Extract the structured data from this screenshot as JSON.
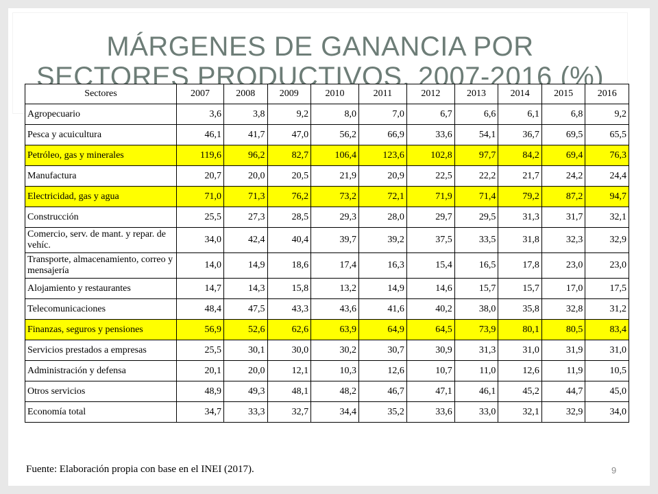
{
  "slide": {
    "title_line1": "MÁRGENES DE GANANCIA POR",
    "title_line2": "SECTORES PRODUCTIVOS, 2007-2016 (%)",
    "source": "Fuente: Elaboración propia con base en el INEI (2017).",
    "page_number": "9",
    "highlight_color": "#ffff00",
    "title_color": "#6d7d77"
  },
  "table": {
    "header": [
      "Sectores",
      "2007",
      "2008",
      "2009",
      "2010",
      "2011",
      "2012",
      "2013",
      "2014",
      "2015",
      "2016"
    ],
    "rows": [
      {
        "sector": "Agropecuario",
        "values": [
          "3,6",
          "3,8",
          "9,2",
          "8,0",
          "7,0",
          "6,7",
          "6,6",
          "6,1",
          "6,8",
          "9,2"
        ],
        "highlight": false
      },
      {
        "sector": "Pesca y acuicultura",
        "values": [
          "46,1",
          "41,7",
          "47,0",
          "56,2",
          "66,9",
          "33,6",
          "54,1",
          "36,7",
          "69,5",
          "65,5"
        ],
        "highlight": false
      },
      {
        "sector": "Petróleo, gas y minerales",
        "values": [
          "119,6",
          "96,2",
          "82,7",
          "106,4",
          "123,6",
          "102,8",
          "97,7",
          "84,2",
          "69,4",
          "76,3"
        ],
        "highlight": true
      },
      {
        "sector": "Manufactura",
        "values": [
          "20,7",
          "20,0",
          "20,5",
          "21,9",
          "20,9",
          "22,5",
          "22,2",
          "21,7",
          "24,2",
          "24,4"
        ],
        "highlight": false
      },
      {
        "sector": "Electricidad, gas y agua",
        "values": [
          "71,0",
          "71,3",
          "76,2",
          "73,2",
          "72,1",
          "71,9",
          "71,4",
          "79,2",
          "87,2",
          "94,7"
        ],
        "highlight": true
      },
      {
        "sector": "Construcción",
        "values": [
          "25,5",
          "27,3",
          "28,5",
          "29,3",
          "28,0",
          "29,7",
          "29,5",
          "31,3",
          "31,7",
          "32,1"
        ],
        "highlight": false
      },
      {
        "sector": "Comercio, serv. de mant. y repar. de vehíc.",
        "values": [
          "34,0",
          "42,4",
          "40,4",
          "39,7",
          "39,2",
          "37,5",
          "33,5",
          "31,8",
          "32,3",
          "32,9"
        ],
        "highlight": false,
        "tall": true
      },
      {
        "sector": "Transporte, almacenamiento, correo y mensajería",
        "values": [
          "14,0",
          "14,9",
          "18,6",
          "17,4",
          "16,3",
          "15,4",
          "16,5",
          "17,8",
          "23,0",
          "23,0"
        ],
        "highlight": false,
        "tall": true
      },
      {
        "sector": "Alojamiento y restaurantes",
        "values": [
          "14,7",
          "14,3",
          "15,8",
          "13,2",
          "14,9",
          "14,6",
          "15,7",
          "15,7",
          "17,0",
          "17,5"
        ],
        "highlight": false
      },
      {
        "sector": "Telecomunicaciones",
        "values": [
          "48,4",
          "47,5",
          "43,3",
          "43,6",
          "41,6",
          "40,2",
          "38,0",
          "35,8",
          "32,8",
          "31,2"
        ],
        "highlight": false
      },
      {
        "sector": "Finanzas, seguros y pensiones",
        "values": [
          "56,9",
          "52,6",
          "62,6",
          "63,9",
          "64,9",
          "64,5",
          "73,9",
          "80,1",
          "80,5",
          "83,4"
        ],
        "highlight": true
      },
      {
        "sector": "Servicios prestados a empresas",
        "values": [
          "25,5",
          "30,1",
          "30,0",
          "30,2",
          "30,7",
          "30,9",
          "31,3",
          "31,0",
          "31,9",
          "31,0"
        ],
        "highlight": false
      },
      {
        "sector": "Administración y defensa",
        "values": [
          "20,1",
          "20,0",
          "12,1",
          "10,3",
          "12,6",
          "10,7",
          "11,0",
          "12,6",
          "11,9",
          "10,5"
        ],
        "highlight": false
      },
      {
        "sector": "Otros servicios",
        "values": [
          "48,9",
          "49,3",
          "48,1",
          "48,2",
          "46,7",
          "47,1",
          "46,1",
          "45,2",
          "44,7",
          "45,0"
        ],
        "highlight": false
      },
      {
        "sector": "Economía total",
        "values": [
          "34,7",
          "33,3",
          "32,7",
          "34,4",
          "35,2",
          "33,6",
          "33,0",
          "32,1",
          "32,9",
          "34,0"
        ],
        "highlight": false
      }
    ]
  }
}
